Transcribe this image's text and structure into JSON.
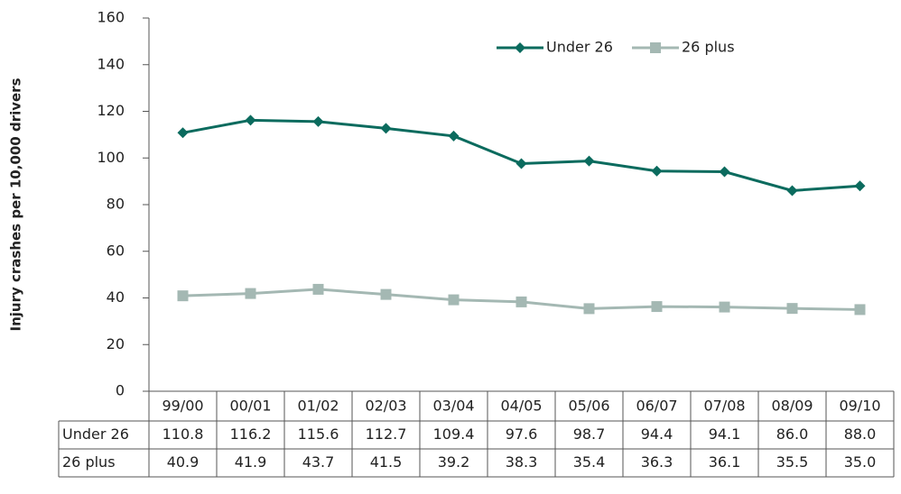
{
  "chart_data": {
    "type": "line",
    "y_label": "Injury crashes per 10,000 drivers",
    "categories": [
      "99/00",
      "00/01",
      "01/02",
      "02/03",
      "03/04",
      "04/05",
      "05/06",
      "06/07",
      "07/08",
      "08/09",
      "09/10"
    ],
    "series": [
      {
        "name": "Under 26",
        "color": "#0b6b5e",
        "marker": "diamond",
        "values": [
          110.8,
          116.2,
          115.6,
          112.7,
          109.4,
          97.6,
          98.7,
          94.4,
          94.1,
          86,
          88
        ],
        "value_labels": [
          "110.8",
          "116.2",
          "115.6",
          "112.7",
          "109.4",
          "97.6",
          "98.7",
          "94.4",
          "94.1",
          "86.0",
          "88.0"
        ]
      },
      {
        "name": "26 plus",
        "color": "#a4b8b3",
        "marker": "square",
        "values": [
          40.9,
          41.9,
          43.7,
          41.5,
          39.2,
          38.3,
          35.4,
          36.3,
          36.1,
          35.5,
          35
        ],
        "value_labels": [
          "40.9",
          "41.9",
          "43.7",
          "41.5",
          "39.2",
          "38.3",
          "35.4",
          "36.3",
          "36.1",
          "35.5",
          "35.0"
        ]
      }
    ],
    "ylim": [
      0,
      160
    ],
    "yticks": [
      0,
      20,
      40,
      60,
      80,
      100,
      120,
      140,
      160
    ],
    "legend": "top-right",
    "data_table": true
  }
}
